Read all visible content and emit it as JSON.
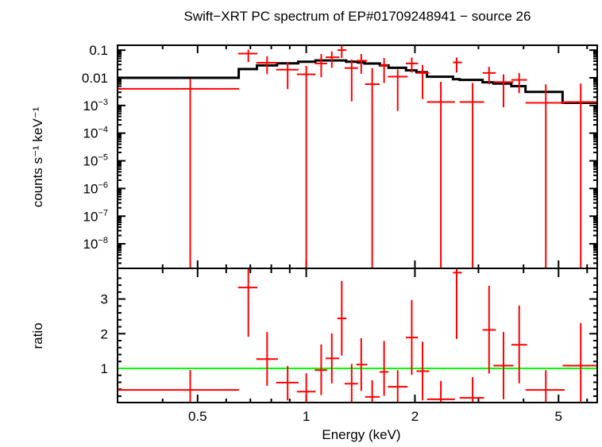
{
  "chart_data": [
    {
      "type": "scatter",
      "title": "Swift−XRT PC spectrum of EP#01709248941 − source 26",
      "ylabel": "counts s⁻¹ keV⁻¹",
      "xscale": "log",
      "yscale": "log",
      "xlim": [
        0.3,
        6.4
      ],
      "ylim": [
        1.3e-09,
        0.15
      ],
      "y_tick_labels": [
        {
          "v": 0.1,
          "label": "0.1"
        },
        {
          "v": 0.01,
          "label": "0.01"
        },
        {
          "v": 0.001,
          "base": "10",
          "exp": "−3"
        },
        {
          "v": 0.0001,
          "base": "10",
          "exp": "−4"
        },
        {
          "v": 1e-05,
          "base": "10",
          "exp": "−5"
        },
        {
          "v": 1e-06,
          "base": "10",
          "exp": "−6"
        },
        {
          "v": 1e-07,
          "base": "10",
          "exp": "−7"
        },
        {
          "v": 1e-08,
          "base": "10",
          "exp": "−8"
        }
      ],
      "data_color": "#ff0000",
      "model_color": "#000000",
      "data": [
        {
          "x": 0.477,
          "xlo": 0.3,
          "xhi": 0.651,
          "y": 0.004,
          "ylo": null,
          "yhi": 0.0089
        },
        {
          "x": 0.691,
          "xlo": 0.647,
          "xhi": 0.732,
          "y": 0.075,
          "ylo": 0.037,
          "yhi": 0.104
        },
        {
          "x": 0.779,
          "xlo": 0.727,
          "xhi": 0.835,
          "y": 0.035,
          "ylo": 0.0136,
          "yhi": 0.06
        },
        {
          "x": 0.888,
          "xlo": 0.825,
          "xhi": 0.952,
          "y": 0.0197,
          "ylo": 0.0039,
          "yhi": 0.037
        },
        {
          "x": 1.0,
          "xlo": 0.942,
          "xhi": 1.061,
          "y": 0.0133,
          "ylo": null,
          "yhi": 0.027
        },
        {
          "x": 1.1,
          "xlo": 1.055,
          "xhi": 1.142,
          "y": 0.033,
          "ylo": 0.0105,
          "yhi": 0.072
        },
        {
          "x": 1.177,
          "xlo": 1.131,
          "xhi": 1.234,
          "y": 0.055,
          "ylo": 0.023,
          "yhi": 0.09
        },
        {
          "x": 1.254,
          "xlo": 1.219,
          "xhi": 1.292,
          "y": 0.1,
          "ylo": 0.052,
          "yhi": 0.15
        },
        {
          "x": 1.336,
          "xlo": 1.277,
          "xhi": 1.391,
          "y": 0.0225,
          "ylo": 0.0014,
          "yhi": 0.046
        },
        {
          "x": 1.42,
          "xlo": 1.376,
          "xhi": 1.475,
          "y": 0.0415,
          "ylo": 0.014,
          "yhi": 0.072
        },
        {
          "x": 1.523,
          "xlo": 1.455,
          "xhi": 1.597,
          "y": 0.0059,
          "ylo": null,
          "yhi": 0.0225
        },
        {
          "x": 1.643,
          "xlo": 1.597,
          "xhi": 1.689,
          "y": 0.028,
          "ylo": 0.0065,
          "yhi": 0.052
        },
        {
          "x": 1.792,
          "xlo": 1.682,
          "xhi": 1.91,
          "y": 0.011,
          "ylo": 0.00064,
          "yhi": 0.02
        },
        {
          "x": 1.96,
          "xlo": 1.887,
          "xhi": 2.04,
          "y": 0.033,
          "ylo": 0.0155,
          "yhi": 0.054
        },
        {
          "x": 2.1,
          "xlo": 2.02,
          "xhi": 2.19,
          "y": 0.0148,
          "ylo": 0.0017,
          "yhi": 0.029
        },
        {
          "x": 2.36,
          "xlo": 2.16,
          "xhi": 2.58,
          "y": 0.00133,
          "ylo": null,
          "yhi": 0.0072
        },
        {
          "x": 2.61,
          "xlo": 2.55,
          "xhi": 2.7,
          "y": 0.036,
          "ylo": 0.0155,
          "yhi": 0.054
        },
        {
          "x": 2.89,
          "xlo": 2.66,
          "xhi": 3.11,
          "y": 0.00133,
          "ylo": null,
          "yhi": 0.0065
        },
        {
          "x": 3.21,
          "xlo": 3.08,
          "xhi": 3.35,
          "y": 0.015,
          "ylo": 0.0058,
          "yhi": 0.025
        },
        {
          "x": 3.52,
          "xlo": 3.3,
          "xhi": 3.75,
          "y": 0.007,
          "ylo": 0.00086,
          "yhi": 0.0133
        },
        {
          "x": 3.89,
          "xlo": 3.7,
          "xhi": 4.09,
          "y": 0.0084,
          "ylo": 0.0028,
          "yhi": 0.0148
        },
        {
          "x": 4.61,
          "xlo": 4.05,
          "xhi": 5.2,
          "y": 0.00125,
          "ylo": null,
          "yhi": 0.0058
        },
        {
          "x": 5.76,
          "xlo": 5.13,
          "xhi": 6.38,
          "y": 0.00133,
          "ylo": null,
          "yhi": 0.0062
        }
      ],
      "model": [
        [
          0.3,
          0.65,
          0.01
        ],
        [
          0.65,
          0.73,
          0.0206
        ],
        [
          0.73,
          0.83,
          0.028
        ],
        [
          0.83,
          0.95,
          0.0334
        ],
        [
          0.95,
          1.06,
          0.038
        ],
        [
          1.06,
          1.29,
          0.0425
        ],
        [
          1.29,
          1.39,
          0.038
        ],
        [
          1.39,
          1.45,
          0.0356
        ],
        [
          1.45,
          1.6,
          0.0327
        ],
        [
          1.6,
          1.69,
          0.028
        ],
        [
          1.69,
          1.89,
          0.023
        ],
        [
          1.89,
          2.02,
          0.0185
        ],
        [
          2.02,
          2.16,
          0.0159
        ],
        [
          2.16,
          2.55,
          0.0109
        ],
        [
          2.55,
          2.66,
          0.0089
        ],
        [
          2.66,
          3.08,
          0.0084
        ],
        [
          3.08,
          3.3,
          0.0069
        ],
        [
          3.3,
          3.7,
          0.0062
        ],
        [
          3.7,
          4.05,
          0.005
        ],
        [
          4.05,
          5.13,
          0.0031
        ],
        [
          5.13,
          6.4,
          0.00125
        ]
      ]
    },
    {
      "type": "scatter",
      "xlabel": "Energy (keV)",
      "ylabel": "ratio",
      "xscale": "log",
      "xlim": [
        0.3,
        6.4
      ],
      "ylim": [
        0.016,
        3.86
      ],
      "x_tick_labels": [
        {
          "v": 0.5,
          "label": "0.5"
        },
        {
          "v": 1,
          "label": "1"
        },
        {
          "v": 2,
          "label": "2"
        },
        {
          "v": 5,
          "label": "5"
        }
      ],
      "y_tick_labels": [
        {
          "v": 1,
          "label": "1"
        },
        {
          "v": 2,
          "label": "2"
        },
        {
          "v": 3,
          "label": "3"
        }
      ],
      "reference_line": {
        "y": 1,
        "color": "#00ff00"
      },
      "data_color": "#ff0000",
      "data": [
        {
          "x": 0.477,
          "xlo": 0.3,
          "xhi": 0.651,
          "y": 0.38,
          "ylo": 0,
          "yhi": 0.95
        },
        {
          "x": 0.691,
          "xlo": 0.647,
          "xhi": 0.732,
          "y": 3.33,
          "ylo": 1.91,
          "yhi": 3.88
        },
        {
          "x": 0.779,
          "xlo": 0.727,
          "xhi": 0.835,
          "y": 1.27,
          "ylo": 0.5,
          "yhi": 2.05
        },
        {
          "x": 0.888,
          "xlo": 0.825,
          "xhi": 0.952,
          "y": 0.59,
          "ylo": 0.08,
          "yhi": 1.07
        },
        {
          "x": 1.0,
          "xlo": 0.942,
          "xhi": 1.061,
          "y": 0.33,
          "ylo": 0,
          "yhi": 0.86
        },
        {
          "x": 1.1,
          "xlo": 1.055,
          "xhi": 1.142,
          "y": 0.95,
          "ylo": 0.23,
          "yhi": 1.69
        },
        {
          "x": 1.177,
          "xlo": 1.131,
          "xhi": 1.234,
          "y": 1.29,
          "ylo": 0.57,
          "yhi": 2.01
        },
        {
          "x": 1.254,
          "xlo": 1.219,
          "xhi": 1.292,
          "y": 2.44,
          "ylo": 1.37,
          "yhi": 3.52
        },
        {
          "x": 1.336,
          "xlo": 1.277,
          "xhi": 1.391,
          "y": 0.56,
          "ylo": 0,
          "yhi": 1.13
        },
        {
          "x": 1.42,
          "xlo": 1.376,
          "xhi": 1.475,
          "y": 1.11,
          "ylo": 0.35,
          "yhi": 1.87
        },
        {
          "x": 1.523,
          "xlo": 1.455,
          "xhi": 1.597,
          "y": 0.18,
          "ylo": 0,
          "yhi": 0.66
        },
        {
          "x": 1.643,
          "xlo": 1.597,
          "xhi": 1.689,
          "y": 0.9,
          "ylo": 0.21,
          "yhi": 1.79
        },
        {
          "x": 1.792,
          "xlo": 1.682,
          "xhi": 1.91,
          "y": 0.47,
          "ylo": 0,
          "yhi": 0.95
        },
        {
          "x": 1.96,
          "xlo": 1.887,
          "xhi": 2.04,
          "y": 1.89,
          "ylo": 0.81,
          "yhi": 2.97
        },
        {
          "x": 2.1,
          "xlo": 2.02,
          "xhi": 2.19,
          "y": 0.92,
          "ylo": 0.08,
          "yhi": 1.77
        },
        {
          "x": 2.36,
          "xlo": 2.16,
          "xhi": 2.58,
          "y": 0.11,
          "ylo": 0,
          "yhi": 0.64
        },
        {
          "x": 2.61,
          "xlo": 2.55,
          "xhi": 2.7,
          "y": 3.76,
          "ylo": 1.85,
          "yhi": 3.9
        },
        {
          "x": 2.89,
          "xlo": 2.66,
          "xhi": 3.11,
          "y": 0.15,
          "ylo": 0,
          "yhi": 0.75
        },
        {
          "x": 3.21,
          "xlo": 3.08,
          "xhi": 3.35,
          "y": 2.11,
          "ylo": 0.85,
          "yhi": 3.38
        },
        {
          "x": 3.52,
          "xlo": 3.3,
          "xhi": 3.75,
          "y": 1.08,
          "ylo": 0.11,
          "yhi": 2.05
        },
        {
          "x": 3.89,
          "xlo": 3.7,
          "xhi": 4.09,
          "y": 1.68,
          "ylo": 0.57,
          "yhi": 2.81
        },
        {
          "x": 4.61,
          "xlo": 4.05,
          "xhi": 5.2,
          "y": 0.38,
          "ylo": 0,
          "yhi": 0.95
        },
        {
          "x": 5.76,
          "xlo": 5.13,
          "xhi": 6.38,
          "y": 1.08,
          "ylo": 0,
          "yhi": 2.31
        }
      ]
    }
  ]
}
